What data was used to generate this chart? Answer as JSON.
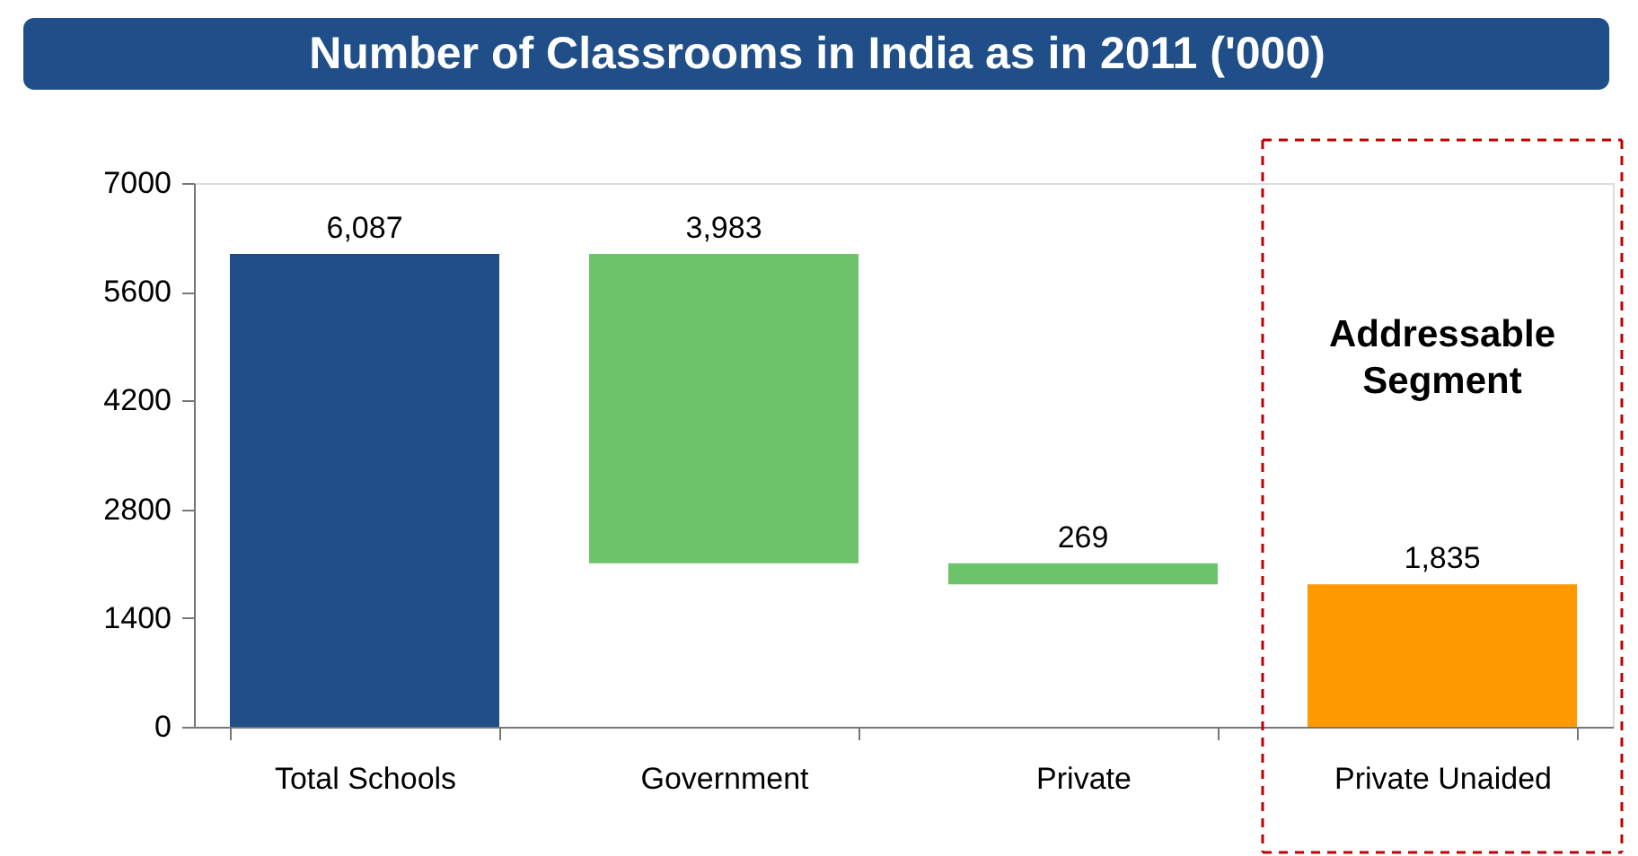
{
  "chart_data": {
    "type": "bar",
    "title": "Number of Classrooms in India as in 2011 ('000)",
    "categories": [
      "Total Schools",
      "Government",
      "Private",
      "Private Unaided"
    ],
    "values": [
      6087,
      3983,
      269,
      1835
    ],
    "base": [
      0,
      2104,
      1835,
      0
    ],
    "colors": [
      "#1f4e89",
      "#6cc36a",
      "#6cc36a",
      "#ff9900"
    ],
    "value_labels": [
      "6,087",
      "3,983",
      "269",
      "1,835"
    ],
    "annotations": [
      "Addressable Segment"
    ],
    "ylim": [
      0,
      7000
    ],
    "yticks": [
      0,
      1400,
      2800,
      4200,
      5600,
      7000
    ],
    "grid": false
  }
}
